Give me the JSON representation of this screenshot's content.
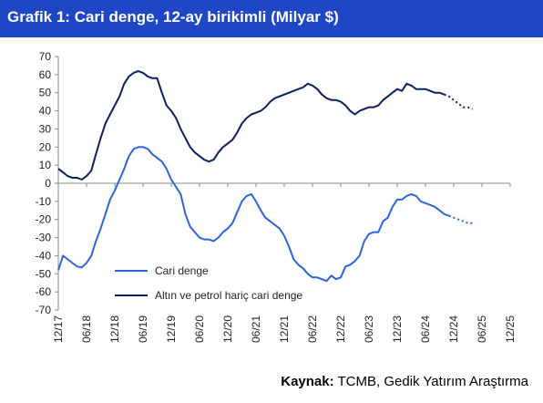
{
  "title": "Grafik 1: Cari denge, 12-ay birikimli (Milyar $)",
  "source_label": "Kaynak:",
  "source_text": " TCMB, Gedik Yatırım Araştırma",
  "chart_data": {
    "type": "line",
    "ylim": [
      -70,
      70
    ],
    "yticks": [
      70,
      60,
      50,
      40,
      30,
      20,
      10,
      0,
      -10,
      -20,
      -30,
      -40,
      -50,
      -60,
      -70
    ],
    "x_tick_labels": [
      "12/17",
      "06/18",
      "12/18",
      "06/19",
      "12/19",
      "06/20",
      "12/20",
      "06/21",
      "12/21",
      "06/22",
      "12/22",
      "06/23",
      "12/23",
      "06/24",
      "12/24",
      "06/25",
      "12/25"
    ],
    "x_unit": "month index from 12/17",
    "legend": {
      "placement": "bottom-left"
    },
    "grid": false,
    "series": [
      {
        "name": "Cari denge",
        "color": "#2e64d6",
        "points": [
          [
            0,
            -48
          ],
          [
            1,
            -40
          ],
          [
            2,
            -42
          ],
          [
            3,
            -44
          ],
          [
            4,
            -46
          ],
          [
            5,
            -46.5
          ],
          [
            6,
            -44
          ],
          [
            7,
            -40
          ],
          [
            8,
            -32
          ],
          [
            9,
            -25
          ],
          [
            10,
            -17
          ],
          [
            11,
            -9
          ],
          [
            12,
            -4
          ],
          [
            13,
            2
          ],
          [
            14,
            8
          ],
          [
            15,
            15
          ],
          [
            16,
            19
          ],
          [
            17,
            20
          ],
          [
            18,
            20
          ],
          [
            19,
            19
          ],
          [
            20,
            16
          ],
          [
            21,
            14
          ],
          [
            22,
            12
          ],
          [
            23,
            8
          ],
          [
            24,
            2
          ],
          [
            25,
            -2
          ],
          [
            26,
            -6
          ],
          [
            27,
            -17
          ],
          [
            28,
            -24
          ],
          [
            29,
            -27
          ],
          [
            30,
            -30
          ],
          [
            31,
            -31
          ],
          [
            32,
            -31
          ],
          [
            33,
            -32
          ],
          [
            34,
            -30
          ],
          [
            35,
            -27
          ],
          [
            36,
            -25
          ],
          [
            37,
            -22
          ],
          [
            38,
            -16
          ],
          [
            39,
            -10
          ],
          [
            40,
            -7
          ],
          [
            41,
            -6
          ],
          [
            42,
            -10
          ],
          [
            43,
            -15
          ],
          [
            44,
            -19
          ],
          [
            45,
            -21
          ],
          [
            46,
            -23
          ],
          [
            47,
            -25
          ],
          [
            48,
            -29
          ],
          [
            49,
            -35
          ],
          [
            50,
            -42
          ],
          [
            51,
            -45
          ],
          [
            52,
            -47
          ],
          [
            53,
            -50
          ],
          [
            54,
            -52
          ],
          [
            55,
            -52
          ],
          [
            56,
            -53
          ],
          [
            57,
            -54
          ],
          [
            58,
            -51
          ],
          [
            59,
            -53
          ],
          [
            60,
            -52
          ],
          [
            61,
            -46
          ],
          [
            62,
            -45
          ],
          [
            63,
            -43
          ],
          [
            64,
            -40
          ],
          [
            65,
            -32
          ],
          [
            66,
            -28
          ],
          [
            67,
            -27
          ],
          [
            68,
            -27
          ],
          [
            69,
            -21
          ],
          [
            70,
            -19
          ],
          [
            71,
            -13
          ],
          [
            72,
            -9
          ],
          [
            73,
            -9
          ],
          [
            74,
            -7
          ],
          [
            75,
            -6
          ],
          [
            76,
            -7
          ],
          [
            77,
            -10
          ],
          [
            78,
            -11
          ],
          [
            79,
            -12
          ],
          [
            80,
            -13
          ],
          [
            81,
            -15
          ],
          [
            82,
            -17
          ],
          [
            83,
            -18
          ]
        ],
        "forecast_points": [
          [
            83,
            -18
          ],
          [
            84,
            -19
          ],
          [
            85,
            -20
          ],
          [
            86,
            -21
          ],
          [
            87,
            -22
          ],
          [
            88,
            -22
          ]
        ]
      },
      {
        "name": "Altın ve petrol hariç cari denge",
        "color": "#0d1f5c",
        "points": [
          [
            0,
            8
          ],
          [
            1,
            6
          ],
          [
            2,
            4
          ],
          [
            3,
            3
          ],
          [
            4,
            3
          ],
          [
            5,
            2
          ],
          [
            6,
            4
          ],
          [
            7,
            7
          ],
          [
            8,
            16
          ],
          [
            9,
            25
          ],
          [
            10,
            33
          ],
          [
            11,
            38
          ],
          [
            12,
            43
          ],
          [
            13,
            48
          ],
          [
            14,
            55
          ],
          [
            15,
            59
          ],
          [
            16,
            61
          ],
          [
            17,
            62
          ],
          [
            18,
            61
          ],
          [
            19,
            59
          ],
          [
            20,
            58
          ],
          [
            21,
            58
          ],
          [
            22,
            50
          ],
          [
            23,
            43
          ],
          [
            24,
            40
          ],
          [
            25,
            36
          ],
          [
            26,
            30
          ],
          [
            27,
            25
          ],
          [
            28,
            20
          ],
          [
            29,
            17
          ],
          [
            30,
            15
          ],
          [
            31,
            13
          ],
          [
            32,
            12
          ],
          [
            33,
            13
          ],
          [
            34,
            17
          ],
          [
            35,
            20
          ],
          [
            36,
            22
          ],
          [
            37,
            24
          ],
          [
            38,
            28
          ],
          [
            39,
            33
          ],
          [
            40,
            36
          ],
          [
            41,
            38
          ],
          [
            42,
            39
          ],
          [
            43,
            40
          ],
          [
            44,
            42
          ],
          [
            45,
            45
          ],
          [
            46,
            47
          ],
          [
            47,
            48
          ],
          [
            48,
            49
          ],
          [
            49,
            50
          ],
          [
            50,
            51
          ],
          [
            51,
            52
          ],
          [
            52,
            53
          ],
          [
            53,
            55
          ],
          [
            54,
            54
          ],
          [
            55,
            52
          ],
          [
            56,
            49
          ],
          [
            57,
            47
          ],
          [
            58,
            46
          ],
          [
            59,
            46
          ],
          [
            60,
            45
          ],
          [
            61,
            43
          ],
          [
            62,
            40
          ],
          [
            63,
            38
          ],
          [
            64,
            40
          ],
          [
            65,
            41
          ],
          [
            66,
            42
          ],
          [
            67,
            42
          ],
          [
            68,
            43
          ],
          [
            69,
            46
          ],
          [
            70,
            48
          ],
          [
            71,
            50
          ],
          [
            72,
            52
          ],
          [
            73,
            51
          ],
          [
            74,
            55
          ],
          [
            75,
            54
          ],
          [
            76,
            52
          ],
          [
            77,
            52
          ],
          [
            78,
            52
          ],
          [
            79,
            51
          ],
          [
            80,
            50
          ],
          [
            81,
            50
          ],
          [
            82,
            49
          ]
        ],
        "forecast_points": [
          [
            82,
            49
          ],
          [
            83,
            48
          ],
          [
            84,
            46
          ],
          [
            85,
            44
          ],
          [
            86,
            42
          ],
          [
            87,
            42
          ],
          [
            88,
            41
          ]
        ]
      }
    ]
  }
}
